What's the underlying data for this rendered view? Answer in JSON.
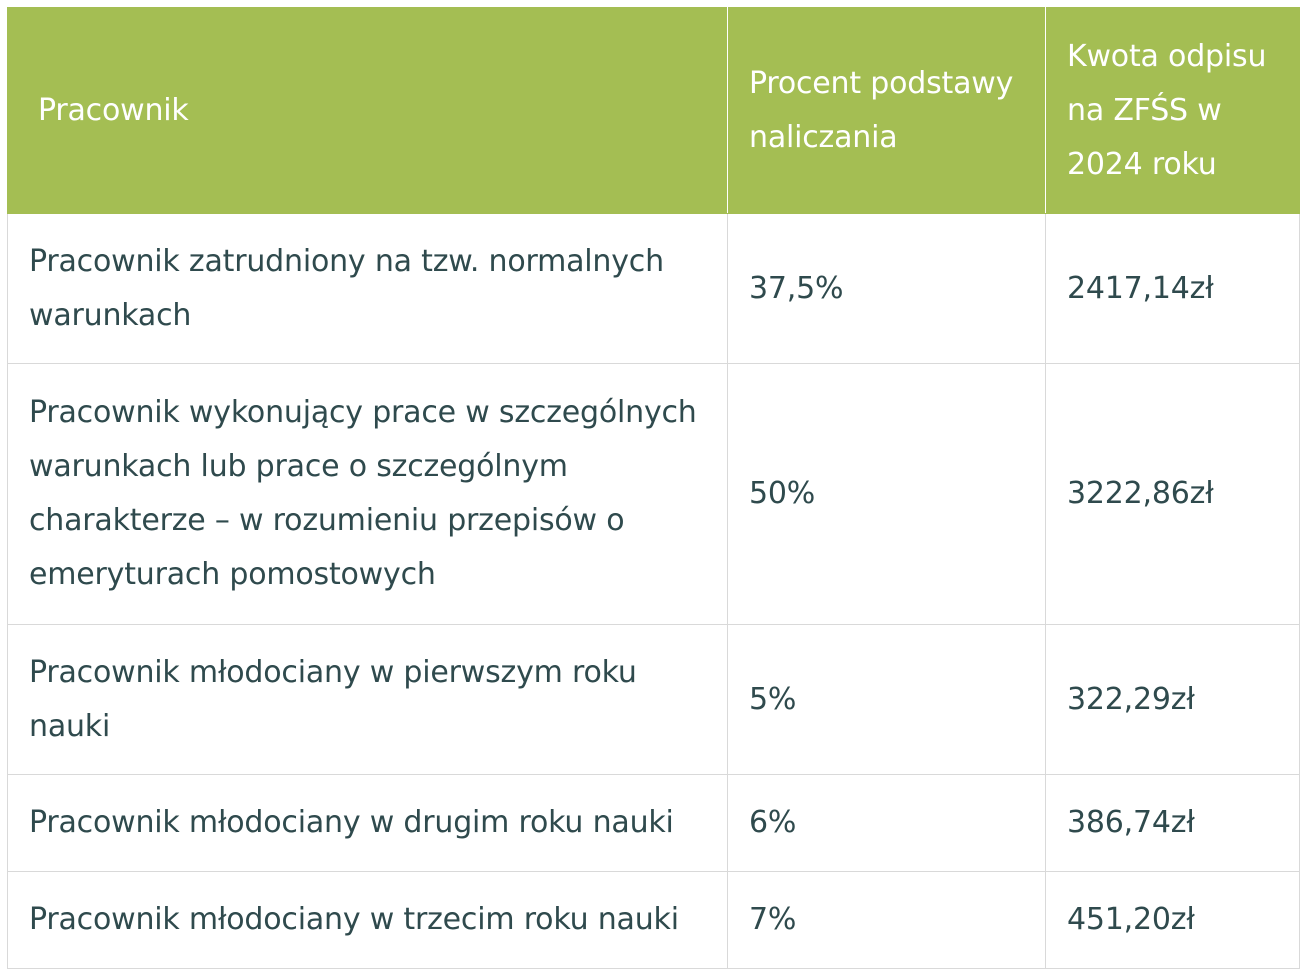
{
  "table": {
    "headers": [
      "Pracownik",
      "Procent podstawy naliczania",
      "Kwota odpisu na ZFŚS w 2024 roku"
    ],
    "rows": [
      {
        "employee": "Pracownik zatrudniony na tzw. normalnych warunkach",
        "percent": "37,5%",
        "amount": "2417,14zł"
      },
      {
        "employee": "Pracownik wykonujący prace w szczególnych warunkach lub prace o szczególnym charakterze – w rozumieniu przepisów o emeryturach pomostowych",
        "percent": "50%",
        "amount": "3222,86zł"
      },
      {
        "employee": "Pracownik młodociany w pierwszym roku nauki",
        "percent": "5%",
        "amount": "322,29zł"
      },
      {
        "employee": "Pracownik młodociany w drugim roku nauki",
        "percent": "6%",
        "amount": "386,74zł"
      },
      {
        "employee": "Pracownik młodociany w trzecim roku nauki",
        "percent": "7%",
        "amount": "451,20zł"
      }
    ]
  },
  "colors": {
    "header_background": "#a4be53",
    "header_text": "#ffffff",
    "body_text": "#2f4a4d",
    "border": "#d9d9d9"
  }
}
